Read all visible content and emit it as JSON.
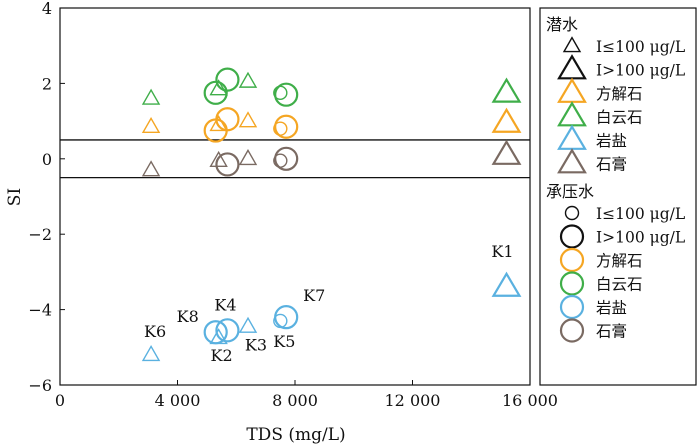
{
  "colors": {
    "calcite": "#F5A623",
    "dolomite": "#3FAE49",
    "halite": "#5AB1E0",
    "gypsum": "#7A6A62",
    "axis": "#111111"
  },
  "chart_data": {
    "type": "scatter",
    "xlabel": "TDS (mg/L)",
    "ylabel": "SI",
    "xlim": [
      0,
      16000
    ],
    "ylim": [
      -6,
      4
    ],
    "xticks": [
      0,
      4000,
      8000,
      12000,
      16000
    ],
    "xtick_labels": [
      "0",
      "4 000",
      "8 000",
      "12 000",
      "16 000"
    ],
    "yticks": [
      -6,
      -4,
      -2,
      0,
      2,
      4
    ],
    "ytick_labels": [
      "−6",
      "−4",
      "−2",
      "0",
      "2",
      "4"
    ],
    "reference_lines": [
      0.5,
      -0.5
    ],
    "series": [
      {
        "aquifer": "phreatic",
        "mineral": "calcite",
        "color_key": "calcite",
        "points": [
          {
            "x": 3100,
            "y": 0.85,
            "big": false
          },
          {
            "x": 5400,
            "y": 0.9,
            "big": false
          },
          {
            "x": 6400,
            "y": 1.0,
            "big": false
          },
          {
            "x": 15200,
            "y": 0.95,
            "big": true
          }
        ]
      },
      {
        "aquifer": "phreatic",
        "mineral": "dolomite",
        "color_key": "dolomite",
        "points": [
          {
            "x": 3100,
            "y": 1.6,
            "big": false
          },
          {
            "x": 5400,
            "y": 1.85,
            "big": false
          },
          {
            "x": 6400,
            "y": 2.05,
            "big": false
          },
          {
            "x": 15200,
            "y": 1.75,
            "big": true
          }
        ]
      },
      {
        "aquifer": "phreatic",
        "mineral": "halite",
        "color_key": "halite",
        "points": [
          {
            "x": 3100,
            "y": -5.2,
            "big": false,
            "label": "K6"
          },
          {
            "x": 5400,
            "y": -4.75,
            "big": false,
            "label": "K2"
          },
          {
            "x": 6400,
            "y": -4.45,
            "big": false,
            "label": "K3"
          },
          {
            "x": 15200,
            "y": -3.4,
            "big": true,
            "label": "K1"
          }
        ]
      },
      {
        "aquifer": "phreatic",
        "mineral": "gypsum",
        "color_key": "gypsum",
        "points": [
          {
            "x": 3100,
            "y": -0.3,
            "big": false
          },
          {
            "x": 5400,
            "y": -0.05,
            "big": false
          },
          {
            "x": 6400,
            "y": 0.0,
            "big": false
          },
          {
            "x": 15200,
            "y": 0.1,
            "big": true
          }
        ]
      },
      {
        "aquifer": "confined",
        "mineral": "calcite",
        "color_key": "calcite",
        "points": [
          {
            "x": 5300,
            "y": 0.75,
            "big": true
          },
          {
            "x": 5700,
            "y": 1.05,
            "big": true
          },
          {
            "x": 7500,
            "y": 0.8,
            "big": false
          },
          {
            "x": 7700,
            "y": 0.85,
            "big": true
          }
        ]
      },
      {
        "aquifer": "confined",
        "mineral": "dolomite",
        "color_key": "dolomite",
        "points": [
          {
            "x": 5300,
            "y": 1.75,
            "big": true
          },
          {
            "x": 5700,
            "y": 2.1,
            "big": true
          },
          {
            "x": 7500,
            "y": 1.75,
            "big": false
          },
          {
            "x": 7700,
            "y": 1.7,
            "big": true
          }
        ]
      },
      {
        "aquifer": "confined",
        "mineral": "halite",
        "color_key": "halite",
        "points": [
          {
            "x": 5300,
            "y": -4.6,
            "big": true,
            "label": "K8"
          },
          {
            "x": 5700,
            "y": -4.55,
            "big": true,
            "label": "K4"
          },
          {
            "x": 7500,
            "y": -4.3,
            "big": false,
            "label": "K5"
          },
          {
            "x": 7700,
            "y": -4.2,
            "big": true,
            "label": "K7"
          }
        ]
      },
      {
        "aquifer": "confined",
        "mineral": "gypsum",
        "color_key": "gypsum",
        "points": [
          {
            "x": 5700,
            "y": -0.15,
            "big": true
          },
          {
            "x": 7500,
            "y": -0.05,
            "big": false
          },
          {
            "x": 7700,
            "y": 0.0,
            "big": true
          }
        ]
      }
    ],
    "legend": {
      "placement": "right",
      "groups": [
        {
          "title": "潜水",
          "marker": "triangle",
          "items": [
            {
              "label": "I≤100 μg/L",
              "color_key": "axis",
              "size": "small"
            },
            {
              "label": "I>100 μg/L",
              "color_key": "axis",
              "size": "big"
            },
            {
              "label": "方解石",
              "color_key": "calcite",
              "size": "big"
            },
            {
              "label": "白云石",
              "color_key": "dolomite",
              "size": "big"
            },
            {
              "label": "岩盐",
              "color_key": "halite",
              "size": "big"
            },
            {
              "label": "石膏",
              "color_key": "gypsum",
              "size": "big"
            }
          ]
        },
        {
          "title": "承压水",
          "marker": "circle",
          "items": [
            {
              "label": "I≤100 μg/L",
              "color_key": "axis",
              "size": "small"
            },
            {
              "label": "I>100 μg/L",
              "color_key": "axis",
              "size": "big"
            },
            {
              "label": "方解石",
              "color_key": "calcite",
              "size": "big"
            },
            {
              "label": "白云石",
              "color_key": "dolomite",
              "size": "big"
            },
            {
              "label": "岩盐",
              "color_key": "halite",
              "size": "big"
            },
            {
              "label": "石膏",
              "color_key": "gypsum",
              "size": "big"
            }
          ]
        }
      ]
    }
  }
}
